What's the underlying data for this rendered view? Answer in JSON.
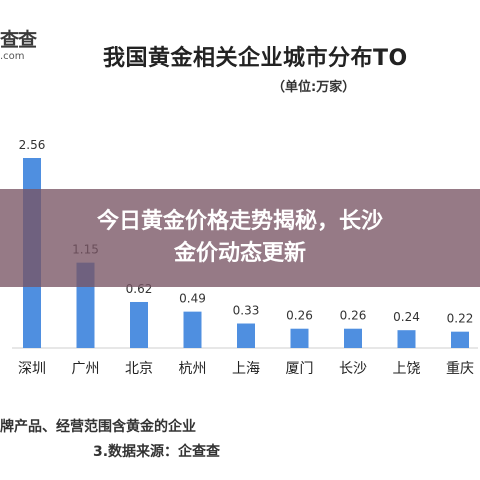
{
  "logo": {
    "main": "查查",
    "sub": ".com"
  },
  "banner": {
    "line1": "今日黄金价格走势揭秘，长沙",
    "line2": "金价动态更新"
  },
  "footnotes": {
    "line1": "牌产品、经营范围含黄金的企业",
    "line2": "3.数据来源：企查查"
  },
  "colors": {
    "bar": "#4f8fe0",
    "banner": "#785464",
    "axis": "#cfcfcf"
  },
  "chart_data": {
    "type": "bar",
    "title": "我国黄金相关企业城市分布TO",
    "subtitle": "（单位:万家）",
    "categories": [
      "深圳",
      "广州",
      "北京",
      "杭州",
      "上海",
      "厦门",
      "长沙",
      "上饶",
      "重庆"
    ],
    "values": [
      2.56,
      1.15,
      0.62,
      0.49,
      0.33,
      0.26,
      0.26,
      0.24,
      0.22
    ],
    "value_labels": [
      "2.56",
      "1.15",
      "0.62",
      "0.49",
      "0.33",
      "0.26",
      "0.26",
      "0.24",
      "0.22"
    ],
    "ylim": [
      0,
      2.56
    ],
    "grid": false,
    "legend": "none"
  }
}
